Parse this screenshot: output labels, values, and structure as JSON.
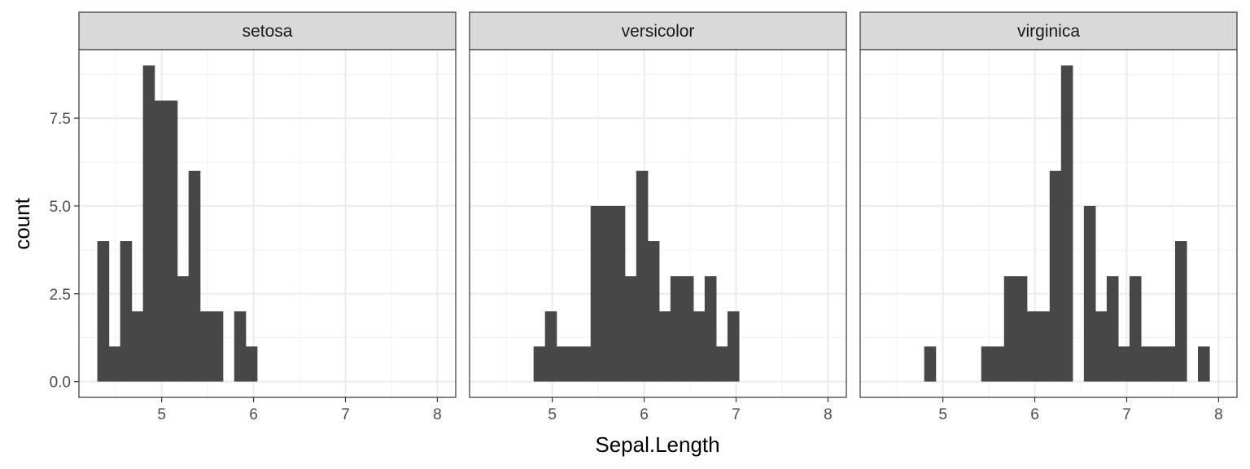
{
  "chart_data": {
    "type": "bar",
    "subtype": "faceted-histogram",
    "xlabel": "Sepal.Length",
    "ylabel": "count",
    "xlim": [
      4.1,
      8.2
    ],
    "ylim": [
      -0.45,
      9.45
    ],
    "x_ticks": [
      "5",
      "6",
      "7",
      "8"
    ],
    "y_ticks": [
      "0.0",
      "2.5",
      "5.0",
      "7.5"
    ],
    "grid": true,
    "bar_color": "#474747",
    "bin_width": 0.1241,
    "bin_start": 4.3,
    "panels": [
      {
        "name": "setosa",
        "counts": [
          4,
          1,
          4,
          2,
          9,
          8,
          8,
          3,
          6,
          2,
          2,
          0,
          2,
          1,
          0,
          0,
          0,
          0,
          0,
          0,
          0,
          0,
          0,
          0,
          0,
          0,
          0,
          0,
          0,
          0
        ]
      },
      {
        "name": "versicolor",
        "counts": [
          0,
          0,
          0,
          0,
          1,
          2,
          1,
          1,
          1,
          5,
          5,
          5,
          3,
          6,
          4,
          2,
          3,
          3,
          2,
          3,
          1,
          2,
          0,
          0,
          0,
          0,
          0,
          0,
          0,
          0
        ]
      },
      {
        "name": "virginica",
        "counts": [
          0,
          0,
          0,
          0,
          1,
          0,
          0,
          0,
          0,
          1,
          1,
          3,
          3,
          2,
          2,
          6,
          9,
          0,
          5,
          2,
          3,
          1,
          3,
          1,
          1,
          1,
          4,
          0,
          1,
          0
        ]
      }
    ]
  }
}
